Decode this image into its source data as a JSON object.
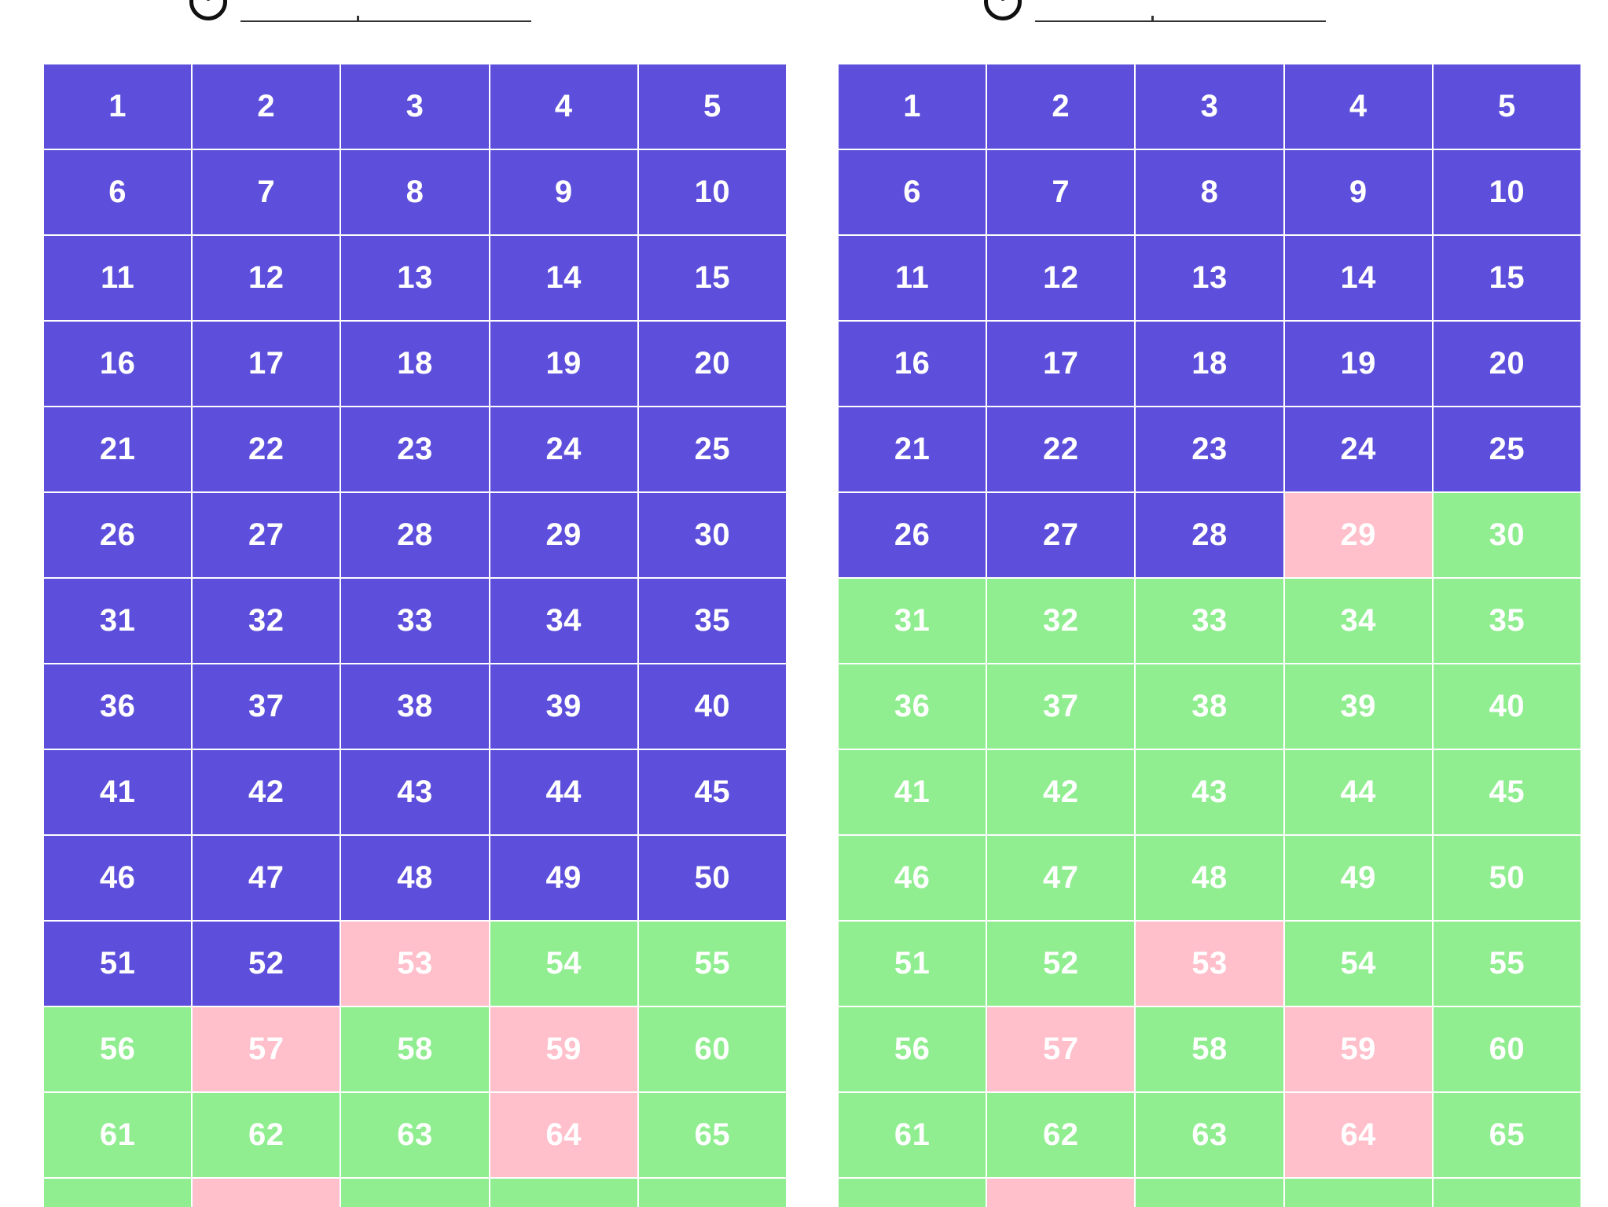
{
  "colors": {
    "pending": "#5D4FDC",
    "correct": "#90EE90",
    "wrong": "#FFBFCB",
    "text": "#FFFFFF"
  },
  "header": {
    "icon": "circle-icon"
  },
  "panels": [
    {
      "cells": [
        {
          "label": "1",
          "state": "pending"
        },
        {
          "label": "2",
          "state": "pending"
        },
        {
          "label": "3",
          "state": "pending"
        },
        {
          "label": "4",
          "state": "pending"
        },
        {
          "label": "5",
          "state": "pending"
        },
        {
          "label": "6",
          "state": "pending"
        },
        {
          "label": "7",
          "state": "pending"
        },
        {
          "label": "8",
          "state": "pending"
        },
        {
          "label": "9",
          "state": "pending"
        },
        {
          "label": "10",
          "state": "pending"
        },
        {
          "label": "11",
          "state": "pending"
        },
        {
          "label": "12",
          "state": "pending"
        },
        {
          "label": "13",
          "state": "pending"
        },
        {
          "label": "14",
          "state": "pending"
        },
        {
          "label": "15",
          "state": "pending"
        },
        {
          "label": "16",
          "state": "pending"
        },
        {
          "label": "17",
          "state": "pending"
        },
        {
          "label": "18",
          "state": "pending"
        },
        {
          "label": "19",
          "state": "pending"
        },
        {
          "label": "20",
          "state": "pending"
        },
        {
          "label": "21",
          "state": "pending"
        },
        {
          "label": "22",
          "state": "pending"
        },
        {
          "label": "23",
          "state": "pending"
        },
        {
          "label": "24",
          "state": "pending"
        },
        {
          "label": "25",
          "state": "pending"
        },
        {
          "label": "26",
          "state": "pending"
        },
        {
          "label": "27",
          "state": "pending"
        },
        {
          "label": "28",
          "state": "pending"
        },
        {
          "label": "29",
          "state": "pending"
        },
        {
          "label": "30",
          "state": "pending"
        },
        {
          "label": "31",
          "state": "pending"
        },
        {
          "label": "32",
          "state": "pending"
        },
        {
          "label": "33",
          "state": "pending"
        },
        {
          "label": "34",
          "state": "pending"
        },
        {
          "label": "35",
          "state": "pending"
        },
        {
          "label": "36",
          "state": "pending"
        },
        {
          "label": "37",
          "state": "pending"
        },
        {
          "label": "38",
          "state": "pending"
        },
        {
          "label": "39",
          "state": "pending"
        },
        {
          "label": "40",
          "state": "pending"
        },
        {
          "label": "41",
          "state": "pending"
        },
        {
          "label": "42",
          "state": "pending"
        },
        {
          "label": "43",
          "state": "pending"
        },
        {
          "label": "44",
          "state": "pending"
        },
        {
          "label": "45",
          "state": "pending"
        },
        {
          "label": "46",
          "state": "pending"
        },
        {
          "label": "47",
          "state": "pending"
        },
        {
          "label": "48",
          "state": "pending"
        },
        {
          "label": "49",
          "state": "pending"
        },
        {
          "label": "50",
          "state": "pending"
        },
        {
          "label": "51",
          "state": "pending"
        },
        {
          "label": "52",
          "state": "pending"
        },
        {
          "label": "53",
          "state": "wrong"
        },
        {
          "label": "54",
          "state": "correct"
        },
        {
          "label": "55",
          "state": "correct"
        },
        {
          "label": "56",
          "state": "correct"
        },
        {
          "label": "57",
          "state": "wrong"
        },
        {
          "label": "58",
          "state": "correct"
        },
        {
          "label": "59",
          "state": "wrong"
        },
        {
          "label": "60",
          "state": "correct"
        },
        {
          "label": "61",
          "state": "correct"
        },
        {
          "label": "62",
          "state": "correct"
        },
        {
          "label": "63",
          "state": "correct"
        },
        {
          "label": "64",
          "state": "wrong"
        },
        {
          "label": "65",
          "state": "correct"
        },
        {
          "label": "",
          "state": "correct"
        },
        {
          "label": "",
          "state": "wrong"
        },
        {
          "label": "",
          "state": "correct"
        },
        {
          "label": "",
          "state": "correct"
        },
        {
          "label": "",
          "state": "correct"
        }
      ]
    },
    {
      "cells": [
        {
          "label": "1",
          "state": "pending"
        },
        {
          "label": "2",
          "state": "pending"
        },
        {
          "label": "3",
          "state": "pending"
        },
        {
          "label": "4",
          "state": "pending"
        },
        {
          "label": "5",
          "state": "pending"
        },
        {
          "label": "6",
          "state": "pending"
        },
        {
          "label": "7",
          "state": "pending"
        },
        {
          "label": "8",
          "state": "pending"
        },
        {
          "label": "9",
          "state": "pending"
        },
        {
          "label": "10",
          "state": "pending"
        },
        {
          "label": "11",
          "state": "pending"
        },
        {
          "label": "12",
          "state": "pending"
        },
        {
          "label": "13",
          "state": "pending"
        },
        {
          "label": "14",
          "state": "pending"
        },
        {
          "label": "15",
          "state": "pending"
        },
        {
          "label": "16",
          "state": "pending"
        },
        {
          "label": "17",
          "state": "pending"
        },
        {
          "label": "18",
          "state": "pending"
        },
        {
          "label": "19",
          "state": "pending"
        },
        {
          "label": "20",
          "state": "pending"
        },
        {
          "label": "21",
          "state": "pending"
        },
        {
          "label": "22",
          "state": "pending"
        },
        {
          "label": "23",
          "state": "pending"
        },
        {
          "label": "24",
          "state": "pending"
        },
        {
          "label": "25",
          "state": "pending"
        },
        {
          "label": "26",
          "state": "pending"
        },
        {
          "label": "27",
          "state": "pending"
        },
        {
          "label": "28",
          "state": "pending"
        },
        {
          "label": "29",
          "state": "wrong"
        },
        {
          "label": "30",
          "state": "correct"
        },
        {
          "label": "31",
          "state": "correct"
        },
        {
          "label": "32",
          "state": "correct"
        },
        {
          "label": "33",
          "state": "correct"
        },
        {
          "label": "34",
          "state": "correct"
        },
        {
          "label": "35",
          "state": "correct"
        },
        {
          "label": "36",
          "state": "correct"
        },
        {
          "label": "37",
          "state": "correct"
        },
        {
          "label": "38",
          "state": "correct"
        },
        {
          "label": "39",
          "state": "correct"
        },
        {
          "label": "40",
          "state": "correct"
        },
        {
          "label": "41",
          "state": "correct"
        },
        {
          "label": "42",
          "state": "correct"
        },
        {
          "label": "43",
          "state": "correct"
        },
        {
          "label": "44",
          "state": "correct"
        },
        {
          "label": "45",
          "state": "correct"
        },
        {
          "label": "46",
          "state": "correct"
        },
        {
          "label": "47",
          "state": "correct"
        },
        {
          "label": "48",
          "state": "correct"
        },
        {
          "label": "49",
          "state": "correct"
        },
        {
          "label": "50",
          "state": "correct"
        },
        {
          "label": "51",
          "state": "correct"
        },
        {
          "label": "52",
          "state": "correct"
        },
        {
          "label": "53",
          "state": "wrong"
        },
        {
          "label": "54",
          "state": "correct"
        },
        {
          "label": "55",
          "state": "correct"
        },
        {
          "label": "56",
          "state": "correct"
        },
        {
          "label": "57",
          "state": "wrong"
        },
        {
          "label": "58",
          "state": "correct"
        },
        {
          "label": "59",
          "state": "wrong"
        },
        {
          "label": "60",
          "state": "correct"
        },
        {
          "label": "61",
          "state": "correct"
        },
        {
          "label": "62",
          "state": "correct"
        },
        {
          "label": "63",
          "state": "correct"
        },
        {
          "label": "64",
          "state": "wrong"
        },
        {
          "label": "65",
          "state": "correct"
        },
        {
          "label": "",
          "state": "correct"
        },
        {
          "label": "",
          "state": "wrong"
        },
        {
          "label": "",
          "state": "correct"
        },
        {
          "label": "",
          "state": "correct"
        },
        {
          "label": "",
          "state": "correct"
        }
      ]
    }
  ]
}
